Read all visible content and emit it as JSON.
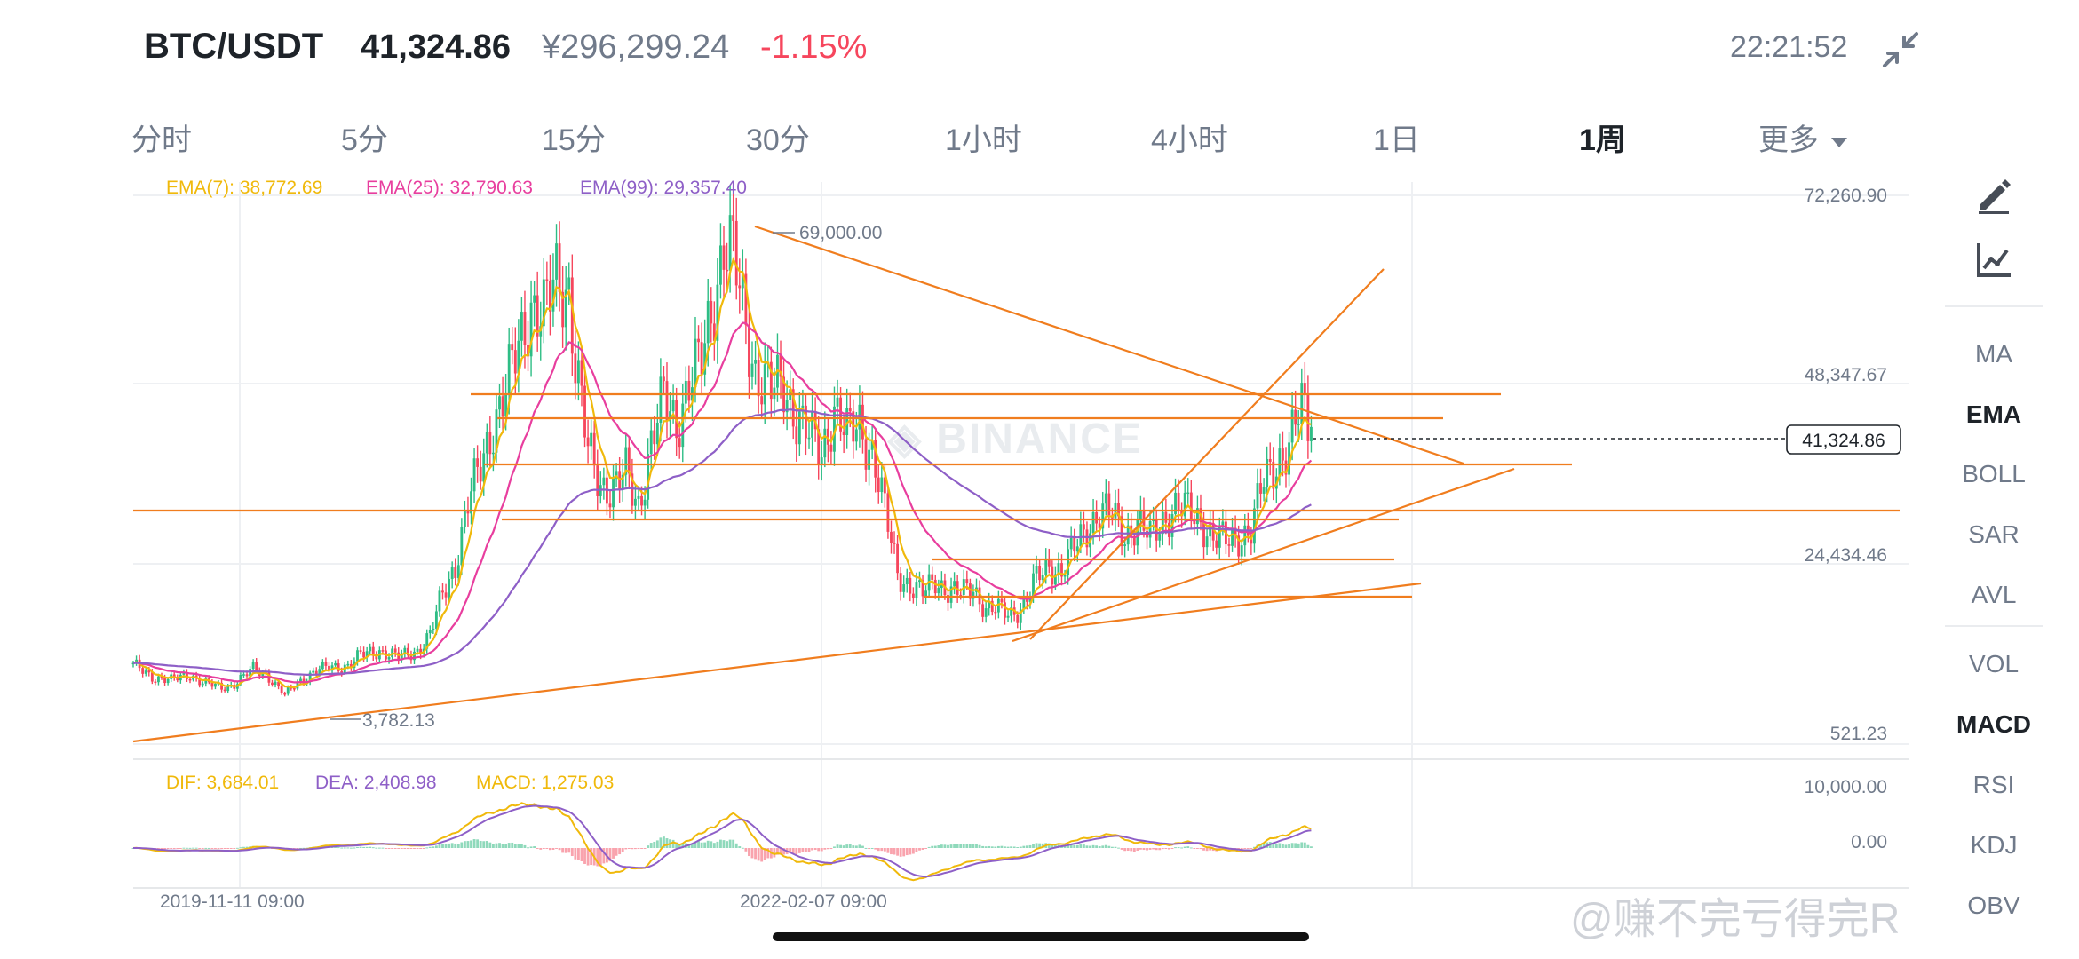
{
  "header": {
    "pair": "BTC/USDT",
    "price": "41,324.86",
    "price_cny": "¥296,299.24",
    "change": "-1.15%",
    "time": "22:21:52"
  },
  "intervals": [
    {
      "label": "分时",
      "active": false
    },
    {
      "label": "5分",
      "active": false
    },
    {
      "label": "15分",
      "active": false
    },
    {
      "label": "30分",
      "active": false
    },
    {
      "label": "1小时",
      "active": false
    },
    {
      "label": "4小时",
      "active": false
    },
    {
      "label": "1日",
      "active": false
    },
    {
      "label": "1周",
      "active": true
    },
    {
      "label": "更多",
      "active": false
    }
  ],
  "sidebar": {
    "tools": [
      "pencil-icon",
      "chart-trend-icon"
    ],
    "main_indicators": [
      {
        "label": "MA",
        "active": false
      },
      {
        "label": "EMA",
        "active": true
      },
      {
        "label": "BOLL",
        "active": false
      },
      {
        "label": "SAR",
        "active": false
      },
      {
        "label": "AVL",
        "active": false
      }
    ],
    "sub_indicators": [
      {
        "label": "VOL",
        "active": false
      },
      {
        "label": "MACD",
        "active": true
      },
      {
        "label": "RSI",
        "active": false
      },
      {
        "label": "KDJ",
        "active": false
      },
      {
        "label": "OBV",
        "active": false
      }
    ]
  },
  "watermark": "@赚不完亏得完R",
  "colors": {
    "up": "#2ebd85",
    "down": "#f6465d",
    "ema7": "#f0b90b",
    "ema25": "#e83e9e",
    "ema99": "#8e5fc7",
    "drawing": "#f07d1e",
    "dif": "#f0b90b",
    "dea": "#8e5fc7"
  },
  "chart_data": {
    "type": "candlestick",
    "interval": "1周",
    "ema_legend": {
      "ema7": "EMA(7): 38,772.69",
      "ema25": "EMA(25): 32,790.63",
      "ema99": "EMA(99): 29,357.40"
    },
    "y_ticks": [
      "72,260.90",
      "48,347.67",
      "24,434.46",
      "521.23"
    ],
    "current_price_label": "41,324.86",
    "high_marker": "69,000.00",
    "low_marker": "3,782.13",
    "x_ticks": [
      "2019-11-11 09:00",
      "2022-02-07 09:00"
    ],
    "macd_legend": {
      "dif": "DIF: 3,684.01",
      "dea": "DEA: 2,408.98",
      "macd": "MACD: 1,275.03"
    },
    "macd_ticks": [
      "10,000.00",
      "0.00"
    ],
    "price_ylim": [
      521.23,
      72260.9
    ],
    "close_path": [
      [
        0,
        9500
      ],
      [
        6,
        8000
      ],
      [
        12,
        7500
      ],
      [
        18,
        8300
      ],
      [
        22,
        7200
      ],
      [
        28,
        6500
      ],
      [
        32,
        7000
      ],
      [
        38,
        9000
      ],
      [
        42,
        8400
      ],
      [
        48,
        5500
      ],
      [
        52,
        7200
      ],
      [
        58,
        8800
      ],
      [
        62,
        9200
      ],
      [
        68,
        9500
      ],
      [
        72,
        10800
      ],
      [
        78,
        11500
      ],
      [
        84,
        10500
      ],
      [
        90,
        11500
      ],
      [
        94,
        13500
      ],
      [
        98,
        19000
      ],
      [
        102,
        23000
      ],
      [
        106,
        31000
      ],
      [
        110,
        36000
      ],
      [
        114,
        42000
      ],
      [
        118,
        46000
      ],
      [
        122,
        52000
      ],
      [
        126,
        58000
      ],
      [
        130,
        56000
      ],
      [
        134,
        61000
      ],
      [
        138,
        60000
      ],
      [
        140,
        50000
      ],
      [
        144,
        38000
      ],
      [
        148,
        34000
      ],
      [
        152,
        33000
      ],
      [
        156,
        35000
      ],
      [
        160,
        31000
      ],
      [
        164,
        39000
      ],
      [
        168,
        45000
      ],
      [
        172,
        42000
      ],
      [
        176,
        47000
      ],
      [
        180,
        50000
      ],
      [
        184,
        59000
      ],
      [
        187,
        66000
      ],
      [
        190,
        64000
      ],
      [
        193,
        57000
      ],
      [
        197,
        49000
      ],
      [
        202,
        46000
      ],
      [
        206,
        47000
      ],
      [
        210,
        43000
      ],
      [
        214,
        40000
      ],
      [
        218,
        38000
      ],
      [
        222,
        44000
      ],
      [
        226,
        40000
      ],
      [
        230,
        42000
      ],
      [
        234,
        38000
      ],
      [
        238,
        30000
      ],
      [
        242,
        22000
      ],
      [
        246,
        20000
      ],
      [
        250,
        19000
      ],
      [
        254,
        21000
      ],
      [
        258,
        19500
      ],
      [
        262,
        19000
      ],
      [
        266,
        20000
      ],
      [
        270,
        17000
      ],
      [
        274,
        16800
      ],
      [
        278,
        16500
      ],
      [
        282,
        17500
      ],
      [
        286,
        21000
      ],
      [
        290,
        23000
      ],
      [
        294,
        22000
      ],
      [
        298,
        25000
      ],
      [
        302,
        28000
      ],
      [
        306,
        30000
      ],
      [
        310,
        29500
      ],
      [
        314,
        27000
      ],
      [
        318,
        28500
      ],
      [
        322,
        26500
      ],
      [
        326,
        29000
      ],
      [
        330,
        30500
      ],
      [
        334,
        30000
      ],
      [
        338,
        29000
      ],
      [
        342,
        26500
      ],
      [
        346,
        26000
      ],
      [
        350,
        26800
      ],
      [
        354,
        27500
      ],
      [
        358,
        34000
      ],
      [
        362,
        37000
      ],
      [
        366,
        38500
      ],
      [
        370,
        44000
      ],
      [
        373,
        41324.86
      ]
    ]
  }
}
